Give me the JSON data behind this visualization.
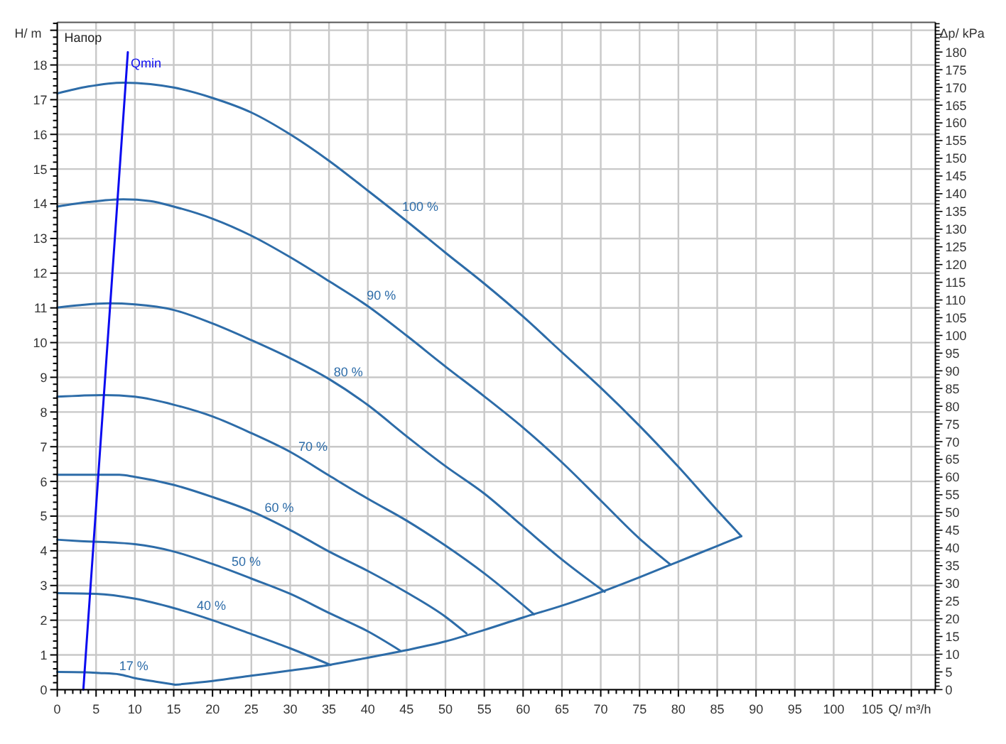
{
  "chart_data": {
    "type": "line",
    "title": "Напор",
    "xlabel": "Q/ m³/h",
    "ylabel": "H/ m",
    "y2label": "Δp/ kPa",
    "xlim": [
      0,
      113.1
    ],
    "ylim": [
      0,
      19.23
    ],
    "y2lim": [
      0,
      188.4
    ],
    "grid": true,
    "xticks": [
      0,
      {
        "value": 1,
        "label": null
      },
      {
        "value": 2,
        "label": null
      },
      {
        "value": 3,
        "label": null
      },
      {
        "value": 4,
        "label": null
      },
      5,
      {
        "value": 6,
        "label": null
      },
      {
        "value": 7,
        "label": null
      },
      {
        "value": 8,
        "label": null
      },
      {
        "value": 9,
        "label": null
      },
      10,
      {
        "value": 11,
        "label": null
      },
      {
        "value": 12,
        "label": null
      },
      {
        "value": 13,
        "label": null
      },
      {
        "value": 14,
        "label": null
      },
      15,
      {
        "value": 16,
        "label": null
      },
      {
        "value": 17,
        "label": null
      },
      {
        "value": 18,
        "label": null
      },
      {
        "value": 19,
        "label": null
      },
      20,
      {
        "value": 21,
        "label": null
      },
      {
        "value": 22,
        "label": null
      },
      {
        "value": 23,
        "label": null
      },
      {
        "value": 24,
        "label": null
      },
      25,
      {
        "value": 26,
        "label": null
      },
      {
        "value": 27,
        "label": null
      },
      {
        "value": 28,
        "label": null
      },
      {
        "value": 29,
        "label": null
      },
      30,
      {
        "value": 31,
        "label": null
      },
      {
        "value": 32,
        "label": null
      },
      {
        "value": 33,
        "label": null
      },
      {
        "value": 34,
        "label": null
      },
      35,
      {
        "value": 36,
        "label": null
      },
      {
        "value": 37,
        "label": null
      },
      {
        "value": 38,
        "label": null
      },
      {
        "value": 39,
        "label": null
      },
      40,
      {
        "value": 41,
        "label": null
      },
      {
        "value": 42,
        "label": null
      },
      {
        "value": 43,
        "label": null
      },
      {
        "value": 44,
        "label": null
      },
      45,
      {
        "value": 46,
        "label": null
      },
      {
        "value": 47,
        "label": null
      },
      {
        "value": 48,
        "label": null
      },
      {
        "value": 49,
        "label": null
      },
      50,
      {
        "value": 51,
        "label": null
      },
      {
        "value": 52,
        "label": null
      },
      {
        "value": 53,
        "label": null
      },
      {
        "value": 54,
        "label": null
      },
      55,
      {
        "value": 56,
        "label": null
      },
      {
        "value": 57,
        "label": null
      },
      {
        "value": 58,
        "label": null
      },
      {
        "value": 59,
        "label": null
      },
      60,
      {
        "value": 61,
        "label": null
      },
      {
        "value": 62,
        "label": null
      },
      {
        "value": 63,
        "label": null
      },
      {
        "value": 64,
        "label": null
      },
      65,
      {
        "value": 66,
        "label": null
      },
      {
        "value": 67,
        "label": null
      },
      {
        "value": 68,
        "label": null
      },
      {
        "value": 69,
        "label": null
      },
      70,
      {
        "value": 71,
        "label": null
      },
      {
        "value": 72,
        "label": null
      },
      {
        "value": 73,
        "label": null
      },
      {
        "value": 74,
        "label": null
      },
      75,
      {
        "value": 76,
        "label": null
      },
      {
        "value": 77,
        "label": null
      },
      {
        "value": 78,
        "label": null
      },
      {
        "value": 79,
        "label": null
      },
      80,
      {
        "value": 81,
        "label": null
      },
      {
        "value": 82,
        "label": null
      },
      {
        "value": 83,
        "label": null
      },
      {
        "value": 84,
        "label": null
      },
      85,
      {
        "value": 86,
        "label": null
      },
      {
        "value": 87,
        "label": null
      },
      {
        "value": 88,
        "label": null
      },
      {
        "value": 89,
        "label": null
      },
      90,
      {
        "value": 91,
        "label": null
      },
      {
        "value": 92,
        "label": null
      },
      {
        "value": 93,
        "label": null
      },
      {
        "value": 94,
        "label": null
      },
      95,
      {
        "value": 96,
        "label": null
      },
      {
        "value": 97,
        "label": null
      },
      {
        "value": 98,
        "label": null
      },
      {
        "value": 99,
        "label": null
      },
      100,
      {
        "value": 101,
        "label": null
      },
      {
        "value": 102,
        "label": null
      },
      {
        "value": 103,
        "label": null
      },
      {
        "value": 104,
        "label": null
      },
      105,
      {
        "value": 106,
        "label": null
      },
      {
        "value": 107,
        "label": null
      },
      {
        "value": 108,
        "label": null
      },
      {
        "value": 109,
        "label": null
      },
      {
        "value": 110,
        "label": null
      },
      {
        "value": 111,
        "label": null
      },
      {
        "value": 112,
        "label": null
      },
      {
        "value": 113,
        "label": null
      }
    ],
    "yticks": [
      0,
      {
        "value": 0.2,
        "label": null
      },
      {
        "value": 0.4,
        "label": null
      },
      {
        "value": 0.6,
        "label": null
      },
      {
        "value": 0.8,
        "label": null
      },
      1,
      {
        "value": 1.2,
        "label": null
      },
      {
        "value": 1.4,
        "label": null
      },
      {
        "value": 1.6,
        "label": null
      },
      {
        "value": 1.8,
        "label": null
      },
      2,
      {
        "value": 2.2,
        "label": null
      },
      {
        "value": 2.4,
        "label": null
      },
      {
        "value": 2.6,
        "label": null
      },
      {
        "value": 2.8,
        "label": null
      },
      3,
      {
        "value": 3.2,
        "label": null
      },
      {
        "value": 3.4,
        "label": null
      },
      {
        "value": 3.6,
        "label": null
      },
      {
        "value": 3.8,
        "label": null
      },
      4,
      {
        "value": 4.2,
        "label": null
      },
      {
        "value": 4.4,
        "label": null
      },
      {
        "value": 4.6,
        "label": null
      },
      {
        "value": 4.8,
        "label": null
      },
      5,
      {
        "value": 5.2,
        "label": null
      },
      {
        "value": 5.4,
        "label": null
      },
      {
        "value": 5.6,
        "label": null
      },
      {
        "value": 5.8,
        "label": null
      },
      6,
      {
        "value": 6.2,
        "label": null
      },
      {
        "value": 6.4,
        "label": null
      },
      {
        "value": 6.6,
        "label": null
      },
      {
        "value": 6.8,
        "label": null
      },
      7,
      {
        "value": 7.2,
        "label": null
      },
      {
        "value": 7.4,
        "label": null
      },
      {
        "value": 7.6,
        "label": null
      },
      {
        "value": 7.8,
        "label": null
      },
      8,
      {
        "value": 8.2,
        "label": null
      },
      {
        "value": 8.4,
        "label": null
      },
      {
        "value": 8.6,
        "label": null
      },
      {
        "value": 8.8,
        "label": null
      },
      9,
      {
        "value": 9.2,
        "label": null
      },
      {
        "value": 9.4,
        "label": null
      },
      {
        "value": 9.6,
        "label": null
      },
      {
        "value": 9.8,
        "label": null
      },
      10,
      {
        "value": 10.2,
        "label": null
      },
      {
        "value": 10.4,
        "label": null
      },
      {
        "value": 10.6,
        "label": null
      },
      {
        "value": 10.8,
        "label": null
      },
      11,
      {
        "value": 11.2,
        "label": null
      },
      {
        "value": 11.4,
        "label": null
      },
      {
        "value": 11.6,
        "label": null
      },
      {
        "value": 11.8,
        "label": null
      },
      12,
      {
        "value": 12.2,
        "label": null
      },
      {
        "value": 12.4,
        "label": null
      },
      {
        "value": 12.6,
        "label": null
      },
      {
        "value": 12.8,
        "label": null
      },
      13,
      {
        "value": 13.2,
        "label": null
      },
      {
        "value": 13.4,
        "label": null
      },
      {
        "value": 13.6,
        "label": null
      },
      {
        "value": 13.8,
        "label": null
      },
      14,
      {
        "value": 14.2,
        "label": null
      },
      {
        "value": 14.4,
        "label": null
      },
      {
        "value": 14.6,
        "label": null
      },
      {
        "value": 14.8,
        "label": null
      },
      15,
      {
        "value": 15.2,
        "label": null
      },
      {
        "value": 15.4,
        "label": null
      },
      {
        "value": 15.6,
        "label": null
      },
      {
        "value": 15.8,
        "label": null
      },
      16,
      {
        "value": 16.2,
        "label": null
      },
      {
        "value": 16.4,
        "label": null
      },
      {
        "value": 16.6,
        "label": null
      },
      {
        "value": 16.8,
        "label": null
      },
      17,
      {
        "value": 17.2,
        "label": null
      },
      {
        "value": 17.4,
        "label": null
      },
      {
        "value": 17.6,
        "label": null
      },
      {
        "value": 17.8,
        "label": null
      },
      18,
      {
        "value": 18.2,
        "label": null
      },
      {
        "value": 18.4,
        "label": null
      },
      {
        "value": 18.6,
        "label": null
      },
      {
        "value": 18.8,
        "label": null
      },
      {
        "value": 19,
        "label": null
      },
      {
        "value": 19.2,
        "label": null
      }
    ],
    "y2ticks": [
      0,
      {
        "value": 1,
        "label": null
      },
      {
        "value": 2,
        "label": null
      },
      {
        "value": 3,
        "label": null
      },
      {
        "value": 4,
        "label": null
      },
      5,
      {
        "value": 6,
        "label": null
      },
      {
        "value": 7,
        "label": null
      },
      {
        "value": 8,
        "label": null
      },
      {
        "value": 9,
        "label": null
      },
      10,
      {
        "value": 11,
        "label": null
      },
      {
        "value": 12,
        "label": null
      },
      {
        "value": 13,
        "label": null
      },
      {
        "value": 14,
        "label": null
      },
      15,
      {
        "value": 16,
        "label": null
      },
      {
        "value": 17,
        "label": null
      },
      {
        "value": 18,
        "label": null
      },
      {
        "value": 19,
        "label": null
      },
      20,
      {
        "value": 21,
        "label": null
      },
      {
        "value": 22,
        "label": null
      },
      {
        "value": 23,
        "label": null
      },
      {
        "value": 24,
        "label": null
      },
      25,
      {
        "value": 26,
        "label": null
      },
      {
        "value": 27,
        "label": null
      },
      {
        "value": 28,
        "label": null
      },
      {
        "value": 29,
        "label": null
      },
      30,
      {
        "value": 31,
        "label": null
      },
      {
        "value": 32,
        "label": null
      },
      {
        "value": 33,
        "label": null
      },
      {
        "value": 34,
        "label": null
      },
      35,
      {
        "value": 36,
        "label": null
      },
      {
        "value": 37,
        "label": null
      },
      {
        "value": 38,
        "label": null
      },
      {
        "value": 39,
        "label": null
      },
      40,
      {
        "value": 41,
        "label": null
      },
      {
        "value": 42,
        "label": null
      },
      {
        "value": 43,
        "label": null
      },
      {
        "value": 44,
        "label": null
      },
      45,
      {
        "value": 46,
        "label": null
      },
      {
        "value": 47,
        "label": null
      },
      {
        "value": 48,
        "label": null
      },
      {
        "value": 49,
        "label": null
      },
      50,
      {
        "value": 51,
        "label": null
      },
      {
        "value": 52,
        "label": null
      },
      {
        "value": 53,
        "label": null
      },
      {
        "value": 54,
        "label": null
      },
      55,
      {
        "value": 56,
        "label": null
      },
      {
        "value": 57,
        "label": null
      },
      {
        "value": 58,
        "label": null
      },
      {
        "value": 59,
        "label": null
      },
      60,
      {
        "value": 61,
        "label": null
      },
      {
        "value": 62,
        "label": null
      },
      {
        "value": 63,
        "label": null
      },
      {
        "value": 64,
        "label": null
      },
      65,
      {
        "value": 66,
        "label": null
      },
      {
        "value": 67,
        "label": null
      },
      {
        "value": 68,
        "label": null
      },
      {
        "value": 69,
        "label": null
      },
      70,
      {
        "value": 71,
        "label": null
      },
      {
        "value": 72,
        "label": null
      },
      {
        "value": 73,
        "label": null
      },
      {
        "value": 74,
        "label": null
      },
      75,
      {
        "value": 76,
        "label": null
      },
      {
        "value": 77,
        "label": null
      },
      {
        "value": 78,
        "label": null
      },
      {
        "value": 79,
        "label": null
      },
      80,
      {
        "value": 81,
        "label": null
      },
      {
        "value": 82,
        "label": null
      },
      {
        "value": 83,
        "label": null
      },
      {
        "value": 84,
        "label": null
      },
      85,
      {
        "value": 86,
        "label": null
      },
      {
        "value": 87,
        "label": null
      },
      {
        "value": 88,
        "label": null
      },
      {
        "value": 89,
        "label": null
      },
      90,
      {
        "value": 91,
        "label": null
      },
      {
        "value": 92,
        "label": null
      },
      {
        "value": 93,
        "label": null
      },
      {
        "value": 94,
        "label": null
      },
      95,
      {
        "value": 96,
        "label": null
      },
      {
        "value": 97,
        "label": null
      },
      {
        "value": 98,
        "label": null
      },
      {
        "value": 99,
        "label": null
      },
      100,
      {
        "value": 101,
        "label": null
      },
      {
        "value": 102,
        "label": null
      },
      {
        "value": 103,
        "label": null
      },
      {
        "value": 104,
        "label": null
      },
      105,
      {
        "value": 106,
        "label": null
      },
      {
        "value": 107,
        "label": null
      },
      {
        "value": 108,
        "label": null
      },
      {
        "value": 109,
        "label": null
      },
      110,
      {
        "value": 111,
        "label": null
      },
      {
        "value": 112,
        "label": null
      },
      {
        "value": 113,
        "label": null
      },
      {
        "value": 114,
        "label": null
      },
      115,
      {
        "value": 116,
        "label": null
      },
      {
        "value": 117,
        "label": null
      },
      {
        "value": 118,
        "label": null
      },
      {
        "value": 119,
        "label": null
      },
      120,
      {
        "value": 121,
        "label": null
      },
      {
        "value": 122,
        "label": null
      },
      {
        "value": 123,
        "label": null
      },
      {
        "value": 124,
        "label": null
      },
      125,
      {
        "value": 126,
        "label": null
      },
      {
        "value": 127,
        "label": null
      },
      {
        "value": 128,
        "label": null
      },
      {
        "value": 129,
        "label": null
      },
      130,
      {
        "value": 131,
        "label": null
      },
      {
        "value": 132,
        "label": null
      },
      {
        "value": 133,
        "label": null
      },
      {
        "value": 134,
        "label": null
      },
      135,
      {
        "value": 136,
        "label": null
      },
      {
        "value": 137,
        "label": null
      },
      {
        "value": 138,
        "label": null
      },
      {
        "value": 139,
        "label": null
      },
      140,
      {
        "value": 141,
        "label": null
      },
      {
        "value": 142,
        "label": null
      },
      {
        "value": 143,
        "label": null
      },
      {
        "value": 144,
        "label": null
      },
      145,
      {
        "value": 146,
        "label": null
      },
      {
        "value": 147,
        "label": null
      },
      {
        "value": 148,
        "label": null
      },
      {
        "value": 149,
        "label": null
      },
      150,
      {
        "value": 151,
        "label": null
      },
      {
        "value": 152,
        "label": null
      },
      {
        "value": 153,
        "label": null
      },
      {
        "value": 154,
        "label": null
      },
      155,
      {
        "value": 156,
        "label": null
      },
      {
        "value": 157,
        "label": null
      },
      {
        "value": 158,
        "label": null
      },
      {
        "value": 159,
        "label": null
      },
      160,
      {
        "value": 161,
        "label": null
      },
      {
        "value": 162,
        "label": null
      },
      {
        "value": 163,
        "label": null
      },
      {
        "value": 164,
        "label": null
      },
      165,
      {
        "value": 166,
        "label": null
      },
      {
        "value": 167,
        "label": null
      },
      {
        "value": 168,
        "label": null
      },
      {
        "value": 169,
        "label": null
      },
      170,
      {
        "value": 171,
        "label": null
      },
      {
        "value": 172,
        "label": null
      },
      {
        "value": 173,
        "label": null
      },
      {
        "value": 174,
        "label": null
      },
      175,
      {
        "value": 176,
        "label": null
      },
      {
        "value": 177,
        "label": null
      },
      {
        "value": 178,
        "label": null
      },
      {
        "value": 179,
        "label": null
      },
      180,
      {
        "value": 181,
        "label": null
      },
      {
        "value": 182,
        "label": null
      },
      {
        "value": 183,
        "label": null
      },
      {
        "value": 184,
        "label": null
      },
      {
        "value": 185,
        "label": null
      },
      {
        "value": 186,
        "label": null
      },
      {
        "value": 187,
        "label": null
      },
      {
        "value": 188,
        "label": null
      }
    ],
    "series": [
      {
        "name": "100 %",
        "color": "#2d6ca8",
        "x": [
          0,
          4,
          8.5,
          12,
          15,
          20,
          25,
          30,
          35,
          40,
          45,
          50,
          55,
          60,
          65,
          70,
          75,
          80,
          85,
          88.1
        ],
        "values": [
          17.18,
          17.38,
          17.49,
          17.45,
          17.35,
          17.05,
          16.63,
          16.0,
          15.24,
          14.38,
          13.5,
          12.59,
          11.7,
          10.75,
          9.72,
          8.7,
          7.6,
          6.42,
          5.17,
          4.42
        ]
      },
      {
        "name": "90 %",
        "color": "#2d6ca8",
        "x": [
          0,
          4,
          8.5,
          12,
          15,
          20,
          25,
          30,
          35,
          40,
          45,
          50,
          55,
          60,
          65,
          70,
          75,
          79
        ],
        "values": [
          13.92,
          14.05,
          14.13,
          14.08,
          13.92,
          13.57,
          13.08,
          12.46,
          11.77,
          11.05,
          10.2,
          9.31,
          8.45,
          7.55,
          6.55,
          5.45,
          4.35,
          3.6
        ]
      },
      {
        "name": "80 %",
        "color": "#2d6ca8",
        "x": [
          0,
          3,
          6.6,
          10,
          15,
          20,
          25,
          30,
          35,
          40,
          45,
          50,
          55,
          60,
          65,
          70.5
        ],
        "values": [
          11.01,
          11.08,
          11.13,
          11.1,
          10.94,
          10.55,
          10.07,
          9.55,
          8.95,
          8.2,
          7.3,
          6.44,
          5.65,
          4.7,
          3.75,
          2.82
        ]
      },
      {
        "name": "70 %",
        "color": "#2d6ca8",
        "x": [
          0,
          6,
          10,
          15,
          20,
          25,
          30,
          35,
          40,
          45,
          50,
          55,
          61.4
        ],
        "values": [
          8.44,
          8.49,
          8.44,
          8.21,
          7.87,
          7.39,
          6.85,
          6.17,
          5.5,
          4.87,
          4.15,
          3.35,
          2.17
        ]
      },
      {
        "name": "60 %",
        "color": "#2d6ca8",
        "x": [
          0,
          8,
          10,
          15,
          20,
          25,
          30,
          35,
          40,
          45,
          50,
          52.7
        ],
        "values": [
          6.19,
          6.19,
          6.13,
          5.9,
          5.55,
          5.14,
          4.6,
          3.98,
          3.42,
          2.8,
          2.1,
          1.62
        ]
      },
      {
        "name": "50 %",
        "color": "#2d6ca8",
        "x": [
          0,
          3,
          10,
          15,
          20,
          25,
          30,
          35,
          40,
          44.2
        ],
        "values": [
          4.32,
          4.28,
          4.19,
          3.98,
          3.62,
          3.2,
          2.76,
          2.21,
          1.68,
          1.12
        ]
      },
      {
        "name": "40 %",
        "color": "#2d6ca8",
        "x": [
          0,
          5,
          10,
          15,
          20,
          25,
          30,
          35.2
        ],
        "values": [
          2.78,
          2.76,
          2.62,
          2.35,
          2.0,
          1.6,
          1.19,
          0.71
        ]
      },
      {
        "name": "17 %",
        "color": "#2d6ca8",
        "x": [
          0,
          3.6,
          5.4,
          8,
          10,
          12.7,
          15.2
        ],
        "values": [
          0.51,
          0.5,
          0.48,
          0.44,
          0.33,
          0.23,
          0.14
        ]
      },
      {
        "color": "#2d6ca8",
        "x": [
          15.2,
          20,
          25,
          30,
          35,
          40,
          45,
          50,
          55,
          60,
          65,
          70,
          75,
          80,
          85,
          88.1
        ],
        "values": [
          0.14,
          0.25,
          0.4,
          0.55,
          0.71,
          0.92,
          1.14,
          1.39,
          1.72,
          2.08,
          2.42,
          2.81,
          3.24,
          3.69,
          4.14,
          4.42
        ]
      },
      {
        "name": "Qmin",
        "color": "#0b0bf0",
        "x": [
          3.36,
          9.09
        ],
        "values": [
          0,
          18.37
        ]
      }
    ]
  }
}
